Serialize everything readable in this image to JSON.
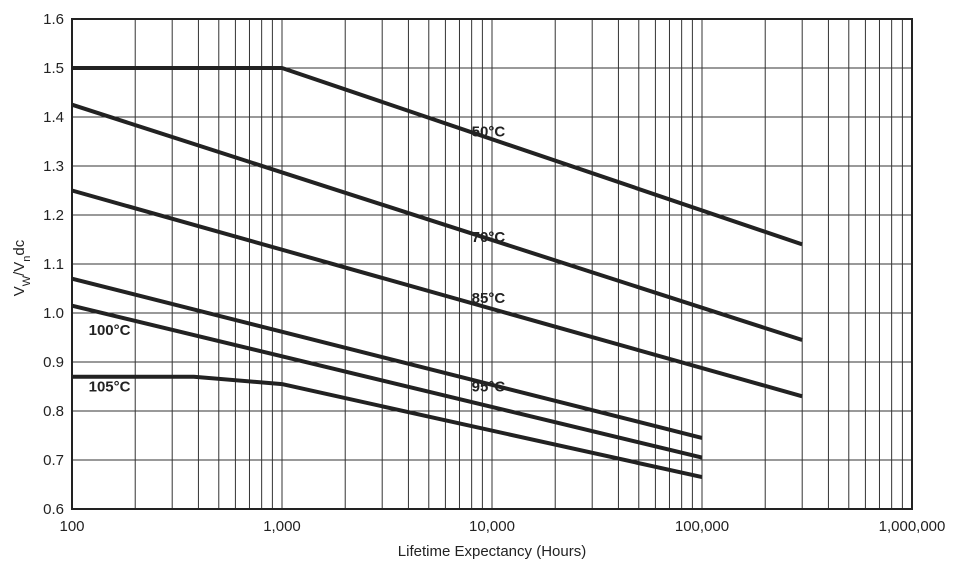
{
  "chart_data": {
    "type": "line",
    "xlabel": "Lifetime Expectancy (Hours)",
    "ylabel": {
      "main": "V",
      "sub1": "W",
      "mid": "/V",
      "sub2": "n",
      "tail": "dc"
    },
    "x_scale": "log",
    "xlim": [
      100,
      1000000
    ],
    "ylim": [
      0.6,
      1.6
    ],
    "grid": true,
    "x_ticks": [
      {
        "value": 100,
        "label": "100"
      },
      {
        "value": 1000,
        "label": "1,000"
      },
      {
        "value": 10000,
        "label": "10,000"
      },
      {
        "value": 100000,
        "label": "100,000"
      },
      {
        "value": 1000000,
        "label": "1,000,000"
      }
    ],
    "y_ticks": [
      {
        "value": 0.6,
        "label": "0.6"
      },
      {
        "value": 0.7,
        "label": "0.7"
      },
      {
        "value": 0.8,
        "label": "0.8"
      },
      {
        "value": 0.9,
        "label": "0.9"
      },
      {
        "value": 1.0,
        "label": "1.0"
      },
      {
        "value": 1.1,
        "label": "1.1"
      },
      {
        "value": 1.2,
        "label": "1.2"
      },
      {
        "value": 1.3,
        "label": "1.3"
      },
      {
        "value": 1.4,
        "label": "1.4"
      },
      {
        "value": 1.5,
        "label": "1.5"
      },
      {
        "value": 1.6,
        "label": "1.6"
      }
    ],
    "series": [
      {
        "name": "50°C",
        "label_at": [
          8000,
          1.36
        ],
        "points": [
          [
            100,
            1.5
          ],
          [
            1000,
            1.5
          ],
          [
            300000,
            1.14
          ]
        ]
      },
      {
        "name": "70°C",
        "label_at": [
          8000,
          1.145
        ],
        "points": [
          [
            100,
            1.425
          ],
          [
            300000,
            0.945
          ]
        ]
      },
      {
        "name": "85°C",
        "label_at": [
          8000,
          1.02
        ],
        "points": [
          [
            100,
            1.25
          ],
          [
            300000,
            0.83
          ]
        ]
      },
      {
        "name": "95°C",
        "label_at": [
          8000,
          0.84
        ],
        "points": [
          [
            100,
            1.07
          ],
          [
            100000,
            0.745
          ]
        ]
      },
      {
        "name": "100°C",
        "label_at": [
          120,
          0.955
        ],
        "points": [
          [
            100,
            1.015
          ],
          [
            100000,
            0.705
          ]
        ]
      },
      {
        "name": "105°C",
        "label_at": [
          120,
          0.84
        ],
        "points": [
          [
            100,
            0.87
          ],
          [
            380,
            0.87
          ],
          [
            1000,
            0.855
          ],
          [
            100000,
            0.665
          ]
        ]
      }
    ]
  }
}
